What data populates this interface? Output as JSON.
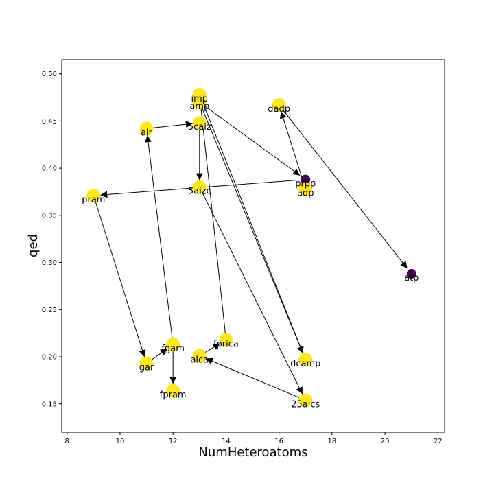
{
  "chart_data": {
    "type": "scatter",
    "xlabel": "NumHeteroatoms",
    "ylabel": "qed",
    "xlim": [
      7.8,
      22.25
    ],
    "ylim": [
      0.12,
      0.515
    ],
    "xticks": [
      8,
      10,
      12,
      14,
      16,
      18,
      20,
      22
    ],
    "yticks": [
      0.15,
      0.2,
      0.25,
      0.3,
      0.35,
      0.4,
      0.45,
      0.5
    ],
    "grid": false,
    "colors": {
      "yellow": "#fde725",
      "purple": "#440154"
    },
    "nodes": [
      {
        "id": "imp",
        "label": "imp",
        "x": 13,
        "y": 0.478,
        "color": "yellow"
      },
      {
        "id": "amp",
        "label": "amp",
        "x": 13,
        "y": 0.47,
        "color": "yellow"
      },
      {
        "id": "dadp",
        "label": "dadp",
        "x": 16,
        "y": 0.467,
        "color": "yellow"
      },
      {
        "id": "5caiz",
        "label": "5caiz",
        "x": 13,
        "y": 0.448,
        "color": "yellow"
      },
      {
        "id": "air",
        "label": "air",
        "x": 11,
        "y": 0.442,
        "color": "yellow"
      },
      {
        "id": "prpp",
        "label": "prpp",
        "x": 17,
        "y": 0.388,
        "color": "purple"
      },
      {
        "id": "adp",
        "label": "adp",
        "x": 17,
        "y": 0.378,
        "color": "yellow"
      },
      {
        "id": "5aizc",
        "label": "5aizc",
        "x": 13,
        "y": 0.38,
        "color": "yellow"
      },
      {
        "id": "pram",
        "label": "pram",
        "x": 9,
        "y": 0.371,
        "color": "yellow"
      },
      {
        "id": "atp",
        "label": "atp",
        "x": 21,
        "y": 0.288,
        "color": "purple"
      },
      {
        "id": "fprica",
        "label": "fprica",
        "x": 14,
        "y": 0.218,
        "color": "yellow"
      },
      {
        "id": "fgam",
        "label": "fgam",
        "x": 12,
        "y": 0.213,
        "color": "yellow"
      },
      {
        "id": "aica",
        "label": "aica",
        "x": 13,
        "y": 0.201,
        "color": "yellow"
      },
      {
        "id": "dcamp",
        "label": "dcamp",
        "x": 17,
        "y": 0.197,
        "color": "yellow"
      },
      {
        "id": "gar",
        "label": "gar",
        "x": 11,
        "y": 0.193,
        "color": "yellow"
      },
      {
        "id": "fpram",
        "label": "fpram",
        "x": 12,
        "y": 0.164,
        "color": "yellow"
      },
      {
        "id": "25aics",
        "label": "25aics",
        "x": 17,
        "y": 0.154,
        "color": "yellow"
      }
    ],
    "edges": [
      {
        "from": "air",
        "to": "5caiz"
      },
      {
        "from": "5caiz",
        "to": "5aizc"
      },
      {
        "from": "5aizc",
        "to": "25aics"
      },
      {
        "from": "25aics",
        "to": "aica"
      },
      {
        "from": "aica",
        "to": "fprica"
      },
      {
        "from": "fprica",
        "to": "imp"
      },
      {
        "from": "imp",
        "to": "dcamp"
      },
      {
        "from": "amp",
        "to": "dcamp"
      },
      {
        "from": "amp",
        "to": "prpp"
      },
      {
        "from": "prpp",
        "to": "pram"
      },
      {
        "from": "pram",
        "to": "gar"
      },
      {
        "from": "gar",
        "to": "fgam"
      },
      {
        "from": "fgam",
        "to": "fpram"
      },
      {
        "from": "fgam",
        "to": "air"
      },
      {
        "from": "adp",
        "to": "dadp"
      },
      {
        "from": "dadp",
        "to": "atp"
      }
    ]
  }
}
